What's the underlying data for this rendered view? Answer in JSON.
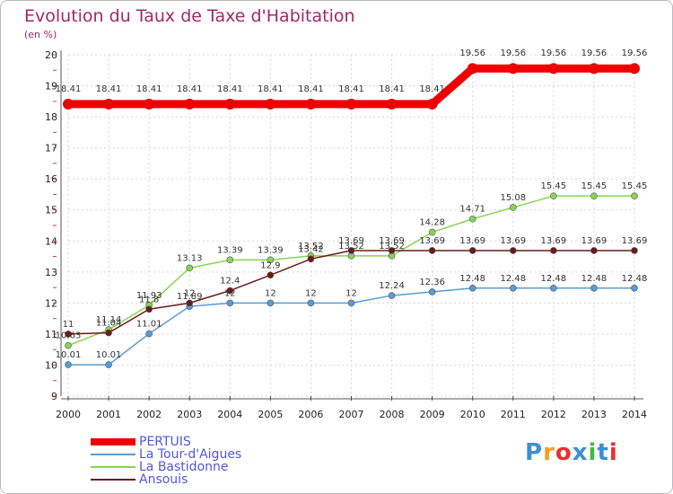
{
  "title": "Evolution du Taux de Taxe d'Habitation",
  "unit": "(en %)",
  "brand": {
    "text": "Proxiti",
    "colors": [
      "#3a8fd6",
      "#f0a020",
      "#e83030",
      "#3a8fd6",
      "#48b848",
      "#3a8fd6",
      "#e83030"
    ]
  },
  "chart_data": {
    "type": "line",
    "x": [
      "2000",
      "2001",
      "2002",
      "2003",
      "2004",
      "2005",
      "2006",
      "2007",
      "2008",
      "2009",
      "2010",
      "2011",
      "2012",
      "2013",
      "2014"
    ],
    "ylim": [
      9,
      20
    ],
    "yticks": [
      9,
      10,
      11,
      12,
      13,
      14,
      15,
      16,
      17,
      18,
      19,
      20
    ],
    "series": [
      {
        "name": "PERTUIS",
        "color": "#ee0000",
        "values": [
          18.41,
          18.41,
          18.41,
          18.41,
          18.41,
          18.41,
          18.41,
          18.41,
          18.41,
          18.41,
          19.56,
          19.56,
          19.56,
          19.56,
          19.56
        ],
        "labels": [
          "18.41",
          "18.41",
          "18.41",
          "18.41",
          "18.41",
          "18.41",
          "18.41",
          "18.41",
          "18.41",
          "18.41",
          "19.56",
          "19.56",
          "19.56",
          "19.56",
          "19.56"
        ]
      },
      {
        "name": "La Tour-d'Aigues",
        "color": "#5a9bd4",
        "values": [
          10.01,
          10.01,
          11.01,
          11.89,
          12,
          12,
          12,
          12,
          12.24,
          12.36,
          12.48,
          12.48,
          12.48,
          12.48,
          12.48
        ],
        "labels": [
          "10.01",
          "10.01",
          "11.01",
          "11.89",
          "12",
          "12",
          "12",
          "12",
          "12.24",
          "12.36",
          "12.48",
          "12.48",
          "12.48",
          "12.48",
          "12.48"
        ]
      },
      {
        "name": "La Bastidonne",
        "color": "#88d455",
        "values": [
          10.63,
          11.14,
          11.93,
          13.13,
          13.39,
          13.39,
          13.52,
          13.52,
          13.52,
          14.28,
          14.71,
          15.08,
          15.45,
          15.45,
          15.45
        ],
        "labels": [
          "10.63",
          "11.14",
          "11.93",
          "13.13",
          "13.39",
          "13.39",
          "13.52",
          "13.52",
          "13.52",
          "14.28",
          "14.71",
          "15.08",
          "15.45",
          "15.45",
          "15.45"
        ]
      },
      {
        "name": "Ansouis",
        "color": "#6b1a1a",
        "values": [
          11,
          11.04,
          11.8,
          12,
          12.4,
          12.9,
          13.42,
          13.69,
          13.69,
          13.69,
          13.69,
          13.69,
          13.69,
          13.69,
          13.69
        ],
        "labels": [
          "11",
          "11.04",
          "11.8",
          "12",
          "12.4",
          "12.9",
          "13.42",
          "13.69",
          "13.69",
          "13.69",
          "13.69",
          "13.69",
          "13.69",
          "13.69",
          "13.69"
        ]
      }
    ]
  }
}
